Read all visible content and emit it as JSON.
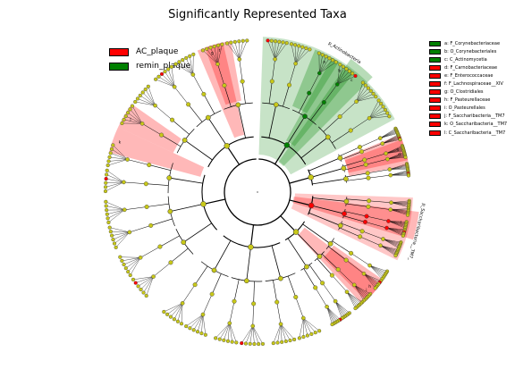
{
  "chart_data": {
    "type": "cladogram",
    "title": "Significantly Represented Taxa",
    "groups": [
      {
        "name": "AC_plaque",
        "color": "#ff0000"
      },
      {
        "name": "remin_plaque",
        "color": "#008000"
      }
    ],
    "taxa": [
      {
        "letter": "a",
        "label": "a: F_Corynebacteriaceae",
        "group": "remin_plaque",
        "angle": -63,
        "level": 5
      },
      {
        "letter": "b",
        "label": "b: O_Corynebacteriales",
        "group": "remin_plaque",
        "angle": -56,
        "level": 4
      },
      {
        "letter": "c",
        "label": "c: C_Actinomycetia",
        "group": "remin_plaque",
        "angle": -50,
        "level": 3
      },
      {
        "letter": "d",
        "label": "d: F_Carnobacteriaceae",
        "group": "AC_plaque",
        "angle": -15,
        "level": 5
      },
      {
        "letter": "e",
        "label": "e: F_Enterococcaceae",
        "group": "AC_plaque",
        "angle": -17,
        "level": 5
      },
      {
        "letter": "f",
        "label": "f: F_Lachnospiraceae__XIV",
        "group": "AC_plaque",
        "angle": -105,
        "level": 5
      },
      {
        "letter": "g",
        "label": "g: O_Clostridiales",
        "group": "AC_plaque",
        "angle": -108,
        "level": 4
      },
      {
        "letter": "h",
        "label": "h: F_Pasteurellaceae",
        "group": "AC_plaque",
        "angle": 40,
        "level": 5
      },
      {
        "letter": "i",
        "label": "i: O_Pasteurellales",
        "group": "AC_plaque",
        "angle": 42,
        "level": 4
      },
      {
        "letter": "j",
        "label": "j: F_Saccharibacteria__TM7",
        "group": "AC_plaque",
        "angle": -150,
        "level": 5
      },
      {
        "letter": "k",
        "label": "k: O_Saccharibacteria__TM7",
        "group": "AC_plaque",
        "angle": -160,
        "level": 4
      },
      {
        "letter": "l",
        "label": "l: C_Saccharibacteria__TM7",
        "group": "AC_plaque",
        "angle": 12,
        "level": 3
      }
    ],
    "phylum_labels": [
      {
        "text": "p_Actinobacteria",
        "group": "remin_plaque"
      },
      {
        "text": "p_Saccharibacteria__TM7_",
        "group": "AC_plaque"
      }
    ]
  }
}
